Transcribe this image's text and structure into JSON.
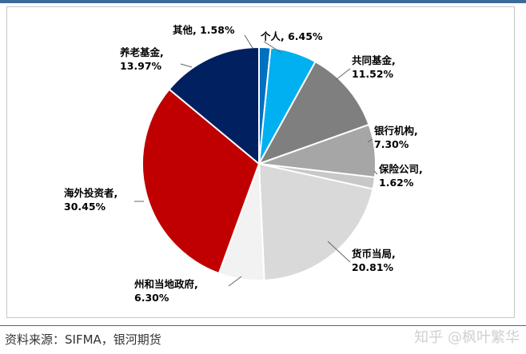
{
  "chart_data": {
    "type": "pie",
    "slices": [
      {
        "name": "个人",
        "value": 6.45,
        "color": "#00b0f0",
        "label": "个人, 6.45%"
      },
      {
        "name": "共同基金",
        "value": 11.52,
        "color": "#7f7f7f",
        "label": [
          "共同基金,",
          "11.52%"
        ]
      },
      {
        "name": "银行机构",
        "value": 7.3,
        "color": "#a6a6a6",
        "label": [
          "银行机构,",
          "7.30%"
        ]
      },
      {
        "name": "保险公司",
        "value": 1.62,
        "color": "#c8c8c8",
        "label": [
          "保险公司,",
          "1.62%"
        ]
      },
      {
        "name": "货币当局",
        "value": 20.81,
        "color": "#d9d9d9",
        "label": [
          "货币当局,",
          "20.81%"
        ]
      },
      {
        "name": "州和当地政府",
        "value": 6.3,
        "color": "#f2f2f2",
        "label": [
          "州和当地政府,",
          "6.30%"
        ]
      },
      {
        "name": "海外投资者",
        "value": 30.45,
        "color": "#c00000",
        "label": [
          "海外投资者,",
          "30.45%"
        ]
      },
      {
        "name": "养老基金",
        "value": 13.97,
        "color": "#002060",
        "label": [
          "养老基金,",
          "13.97%"
        ]
      },
      {
        "name": "其他",
        "value": 1.58,
        "color": "#0070c0",
        "label": "其他, 1.58%"
      }
    ]
  },
  "source_text": "资料来源：SIFMA，银河期货",
  "watermark_text": "知乎 @枫叶繁华"
}
